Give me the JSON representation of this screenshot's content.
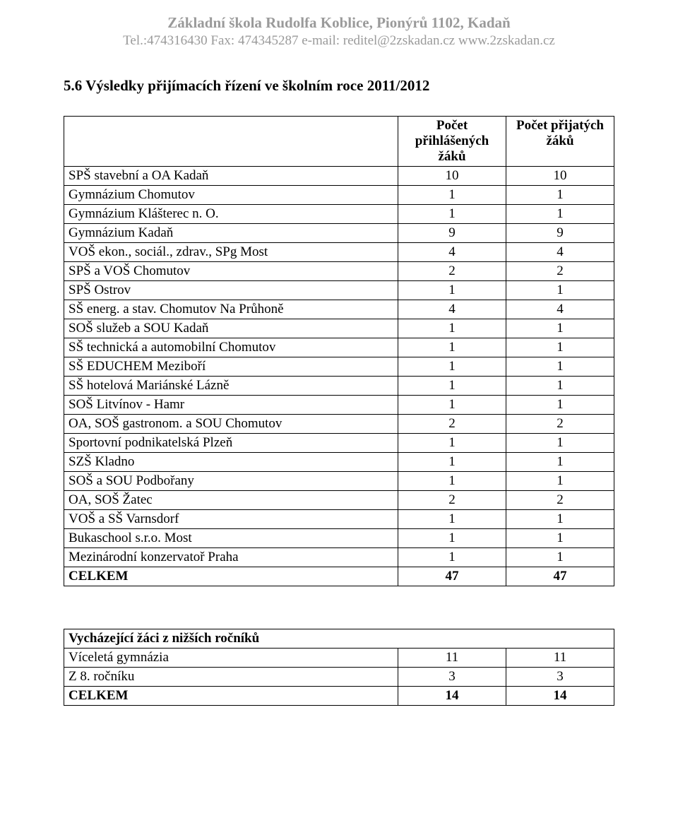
{
  "header": {
    "title": "Základní škola Rudolfa Koblice, Pionýrů 1102, Kadaň",
    "subtitle": "Tel.:474316430 Fax: 474345287 e-mail: reditel@2zskadan.cz www.2zskadan.cz"
  },
  "section": {
    "heading": "5.6   Výsledky přijímacích řízení ve školním roce 2011/2012"
  },
  "table1": {
    "col1_header": "Počet přihlášených žáků",
    "col2_header": "Počet přijatých žáků",
    "rows": [
      {
        "label": "SPŠ stavební a OA Kadaň",
        "c1": "10",
        "c2": "10"
      },
      {
        "label": "Gymnázium Chomutov",
        "c1": "1",
        "c2": "1"
      },
      {
        "label": "Gymnázium Klášterec n. O.",
        "c1": "1",
        "c2": "1"
      },
      {
        "label": "Gymnázium Kadaň",
        "c1": "9",
        "c2": "9"
      },
      {
        "label": "VOŠ ekon., sociál., zdrav., SPg Most",
        "c1": "4",
        "c2": "4"
      },
      {
        "label": "SPŠ a VOŠ Chomutov",
        "c1": "2",
        "c2": "2"
      },
      {
        "label": "SPŠ Ostrov",
        "c1": "1",
        "c2": "1"
      },
      {
        "label": "SŠ energ. a stav. Chomutov Na Průhoně",
        "c1": "4",
        "c2": "4"
      },
      {
        "label": "SOŠ služeb a SOU Kadaň",
        "c1": "1",
        "c2": "1"
      },
      {
        "label": "SŠ technická a automobilní Chomutov",
        "c1": "1",
        "c2": "1"
      },
      {
        "label": "SŠ EDUCHEM Meziboří",
        "c1": "1",
        "c2": "1"
      },
      {
        "label": "SŠ hotelová Mariánské Lázně",
        "c1": "1",
        "c2": "1"
      },
      {
        "label": "SOŠ Litvínov - Hamr",
        "c1": "1",
        "c2": "1"
      },
      {
        "label": "OA, SOŠ gastronom. a SOU Chomutov",
        "c1": "2",
        "c2": "2"
      },
      {
        "label": "Sportovní podnikatelská Plzeň",
        "c1": "1",
        "c2": "1"
      },
      {
        "label": "SZŠ Kladno",
        "c1": "1",
        "c2": "1"
      },
      {
        "label": "SOŠ a SOU Podbořany",
        "c1": "1",
        "c2": "1"
      },
      {
        "label": "OA, SOŠ Žatec",
        "c1": "2",
        "c2": "2"
      },
      {
        "label": "VOŠ a SŠ Varnsdorf",
        "c1": "1",
        "c2": "1"
      },
      {
        "label": "Bukaschool s.r.o. Most",
        "c1": "1",
        "c2": "1"
      },
      {
        "label": "Mezinárodní konzervatoř Praha",
        "c1": "1",
        "c2": "1"
      }
    ],
    "total": {
      "label": "CELKEM",
      "c1": "47",
      "c2": "47"
    }
  },
  "table2": {
    "heading": "Vycházející žáci z nižších ročníků",
    "rows": [
      {
        "label": "Víceletá gymnázia",
        "c1": "11",
        "c2": "11"
      },
      {
        "label": "Z 8. ročníku",
        "c1": "3",
        "c2": "3"
      }
    ],
    "total": {
      "label": "CELKEM",
      "c1": "14",
      "c2": "14"
    }
  }
}
